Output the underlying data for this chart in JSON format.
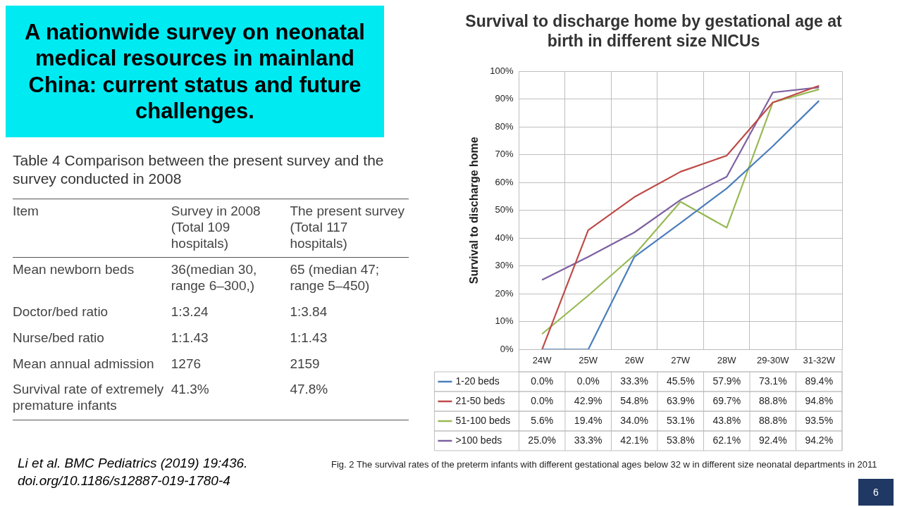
{
  "chart_data": [
    {
      "type": "other",
      "title": "A nationwide survey on neonatal medical resources in mainland China: current status and future challenges.",
      "annotations": [
        "Table 4 Comparison between the present survey and the survey conducted in 2008",
        "Item",
        "Survey in 2008 (Total 109 hospitals)",
        "The present survey (Total 117 hospitals)",
        "Mean newborn beds",
        "36(median 30, range 6–300,)",
        "65 (median 47; range 5–450)",
        "Doctor/bed ratio",
        "1:3.24",
        "1:3.84",
        "Nurse/bed ratio",
        "1:1.43",
        "1:1.43",
        "Mean annual admission",
        "1276",
        "2159",
        "Survival rate of extremely premature infants",
        "41.3%",
        "47.8%",
        "Li et al. BMC Pediatrics (2019) 19:436. doi.org/10.1186/s12887-019-1780-4",
        "6"
      ]
    },
    {
      "type": "line",
      "title": "Survival to discharge home by gestational age at birth in different size NICUs",
      "ylabel": "Survival to discharge home",
      "categories": [
        "24W",
        "25W",
        "26W",
        "27W",
        "28W",
        "29-30W",
        "31-32W"
      ],
      "series": [
        {
          "name": "1-20 beds",
          "color": "#4a7ebb",
          "values": [
            0.0,
            0.0,
            33.3,
            45.5,
            57.9,
            73.1,
            89.4
          ],
          "value_labels": [
            "0.0%",
            "0.0%",
            "33.3%",
            "45.5%",
            "57.9%",
            "73.1%",
            "89.4%"
          ]
        },
        {
          "name": "21-50 beds",
          "color": "#be4b48",
          "values": [
            0.0,
            42.9,
            54.8,
            63.9,
            69.7,
            88.8,
            94.8
          ],
          "value_labels": [
            "0.0%",
            "42.9%",
            "54.8%",
            "63.9%",
            "69.7%",
            "88.8%",
            "94.8%"
          ]
        },
        {
          "name": "51-100 beds",
          "color": "#98b954",
          "values": [
            5.6,
            19.4,
            34.0,
            53.1,
            43.8,
            88.8,
            93.5
          ],
          "value_labels": [
            "5.6%",
            "19.4%",
            "34.0%",
            "53.1%",
            "43.8%",
            "88.8%",
            "93.5%"
          ]
        },
        {
          "name": ">100 beds",
          "color": "#7d60a0",
          "values": [
            25.0,
            33.3,
            42.1,
            53.8,
            62.1,
            92.4,
            94.2
          ],
          "value_labels": [
            "25.0%",
            "33.3%",
            "42.1%",
            "53.8%",
            "62.1%",
            "92.4%",
            "94.2%"
          ]
        }
      ],
      "ylim": [
        0,
        100
      ],
      "yticks": [
        {
          "value": 0,
          "label": "0%"
        },
        {
          "value": 10,
          "label": "10%"
        },
        {
          "value": 20,
          "label": "20%"
        },
        {
          "value": 30,
          "label": "30%"
        },
        {
          "value": 40,
          "label": "40%"
        },
        {
          "value": 50,
          "label": "50%"
        },
        {
          "value": 60,
          "label": "60%"
        },
        {
          "value": 70,
          "label": "70%"
        },
        {
          "value": 80,
          "label": "80%"
        },
        {
          "value": 90,
          "label": "90%"
        },
        {
          "value": 100,
          "label": "100%"
        }
      ],
      "grid": true,
      "legend": "bottom",
      "annotations": [
        "Fig. 2 The survival rates of the preterm infants with different gestational ages below 32 w in different size neonatal departments in 2011"
      ]
    }
  ]
}
